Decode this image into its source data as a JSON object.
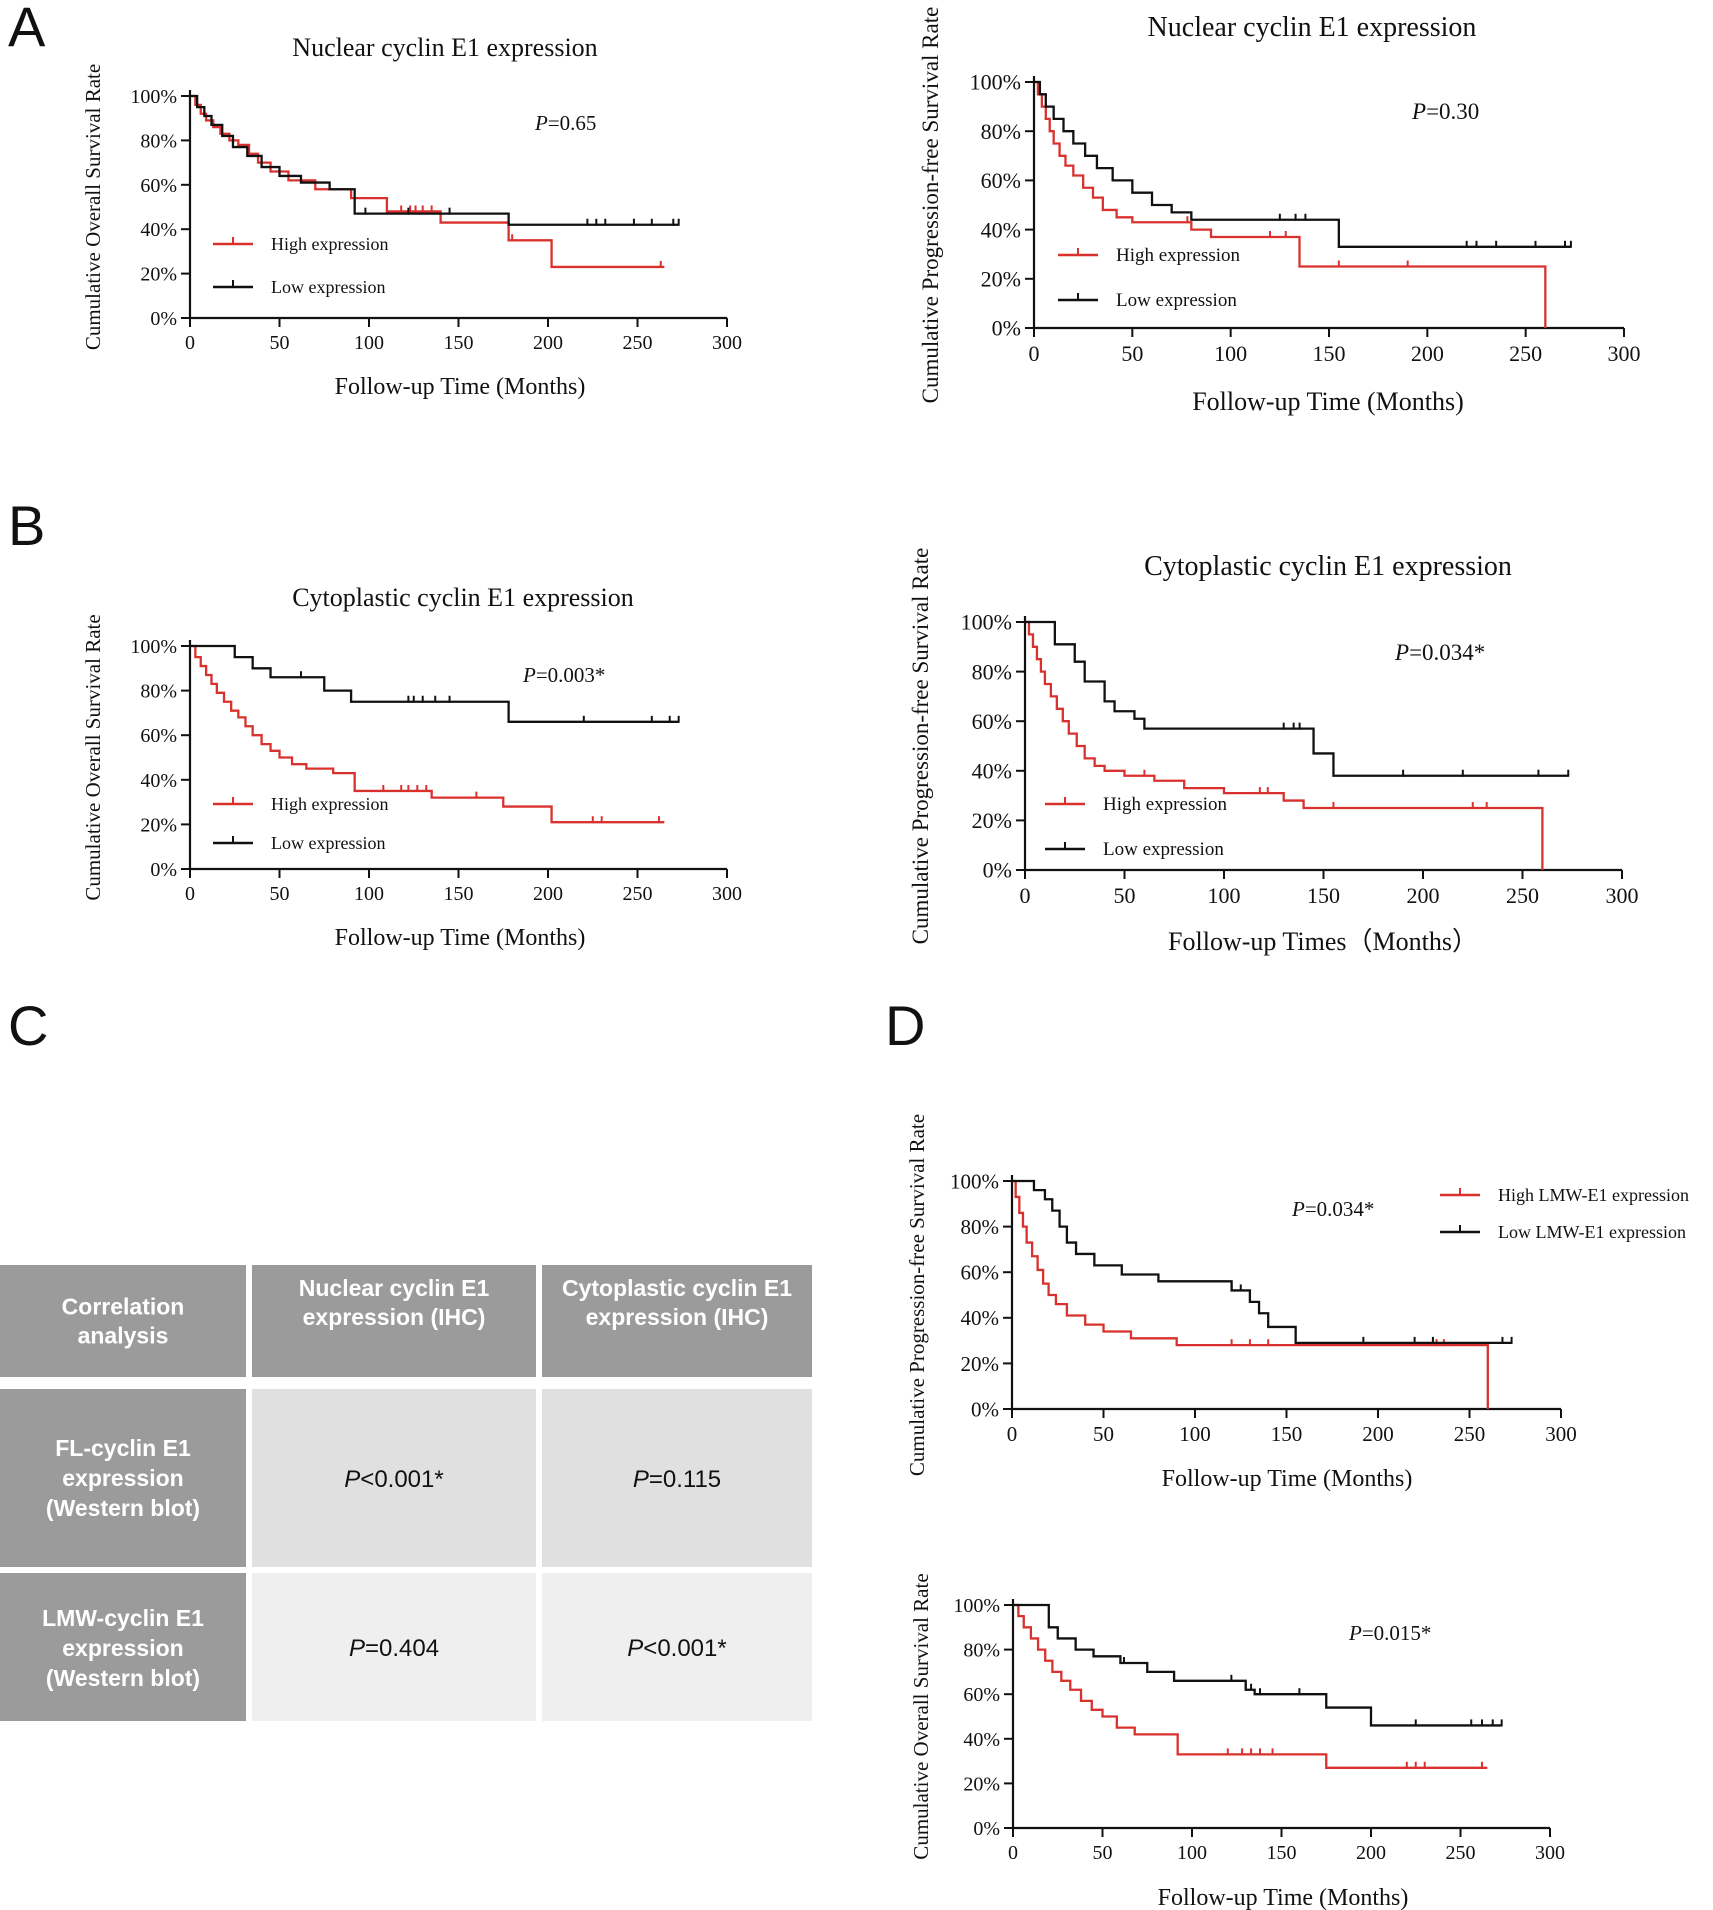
{
  "panel_letters": [
    "A",
    "B",
    "C",
    "D"
  ],
  "colors": {
    "high": "#d9322e",
    "low": "#111111",
    "table_header": "#9b9b9b",
    "table_row1": "#e0e0e0",
    "table_row2": "#efefef"
  },
  "chart_data": [
    {
      "id": "A1",
      "type": "line",
      "title": "Nuclear cyclin E1 expression",
      "xlabel": "Follow-up Time (Months)",
      "ylabel": "Cumulative Overall Survival Rate",
      "xlim": [
        0,
        300
      ],
      "ylim": [
        0,
        100
      ],
      "xticks": [
        "0",
        "50",
        "100",
        "150",
        "200",
        "250",
        "300"
      ],
      "yticks": [
        "0%",
        "20%",
        "40%",
        "60%",
        "80%",
        "100%"
      ],
      "pvalue": {
        "p": "P",
        "rest": "=0.65"
      },
      "legend": [
        "High expression",
        "Low expression"
      ],
      "series": [
        {
          "name": "High expression",
          "color": "high",
          "x": [
            0,
            3,
            6,
            9,
            13,
            17,
            22,
            27,
            33,
            38,
            45,
            55,
            70,
            90,
            110,
            140,
            178,
            202,
            265
          ],
          "y": [
            100,
            96,
            92,
            89,
            86,
            83,
            80,
            78,
            74,
            70,
            66,
            62,
            58,
            54,
            48,
            43,
            35,
            23,
            23
          ],
          "censor_x": [
            118,
            123,
            126,
            130,
            135,
            180,
            263
          ]
        },
        {
          "name": "Low expression",
          "color": "low",
          "x": [
            0,
            4,
            8,
            12,
            18,
            24,
            32,
            40,
            50,
            62,
            78,
            92,
            135,
            178,
            273
          ],
          "y": [
            100,
            95,
            91,
            87,
            82,
            77,
            73,
            68,
            64,
            61,
            58,
            47,
            47,
            42,
            42
          ],
          "censor_x": [
            98,
            122,
            145,
            222,
            227,
            232,
            248,
            258,
            270,
            273
          ]
        }
      ]
    },
    {
      "id": "A2",
      "type": "line",
      "title": "Nuclear cyclin E1 expression",
      "xlabel": "Follow-up Time (Months)",
      "ylabel": "Cumulative Progression-free Survival Rate",
      "xlim": [
        0,
        300
      ],
      "ylim": [
        0,
        100
      ],
      "xticks": [
        "0",
        "50",
        "100",
        "150",
        "200",
        "250",
        "300"
      ],
      "yticks": [
        "0%",
        "20%",
        "40%",
        "60%",
        "80%",
        "100%"
      ],
      "pvalue": {
        "p": "P",
        "rest": "=0.30"
      },
      "legend": [
        "High expression",
        "Low expression"
      ],
      "series": [
        {
          "name": "High expression",
          "color": "high",
          "x": [
            0,
            2,
            4,
            6,
            8,
            10,
            13,
            16,
            20,
            25,
            30,
            35,
            42,
            50,
            80,
            90,
            135,
            260,
            260
          ],
          "y": [
            100,
            95,
            90,
            85,
            80,
            75,
            70,
            66,
            62,
            57,
            53,
            48,
            45,
            43,
            40,
            37,
            25,
            25,
            0
          ],
          "censor_x": [
            78,
            120,
            128,
            155,
            190
          ]
        },
        {
          "name": "Low expression",
          "color": "low",
          "x": [
            0,
            3,
            6,
            10,
            15,
            20,
            26,
            32,
            40,
            50,
            60,
            70,
            80,
            140,
            155,
            273
          ],
          "y": [
            100,
            95,
            90,
            85,
            80,
            75,
            70,
            65,
            60,
            55,
            50,
            47,
            44,
            44,
            33,
            33
          ],
          "censor_x": [
            125,
            133,
            138,
            220,
            225,
            235,
            255,
            270,
            273
          ]
        }
      ]
    },
    {
      "id": "B1",
      "type": "line",
      "title": "Cytoplastic cyclin E1 expression",
      "xlabel": "Follow-up Time (Months)",
      "ylabel": "Cumulative Overall Survival Rate",
      "xlim": [
        0,
        300
      ],
      "ylim": [
        0,
        100
      ],
      "xticks": [
        "0",
        "50",
        "100",
        "150",
        "200",
        "250",
        "300"
      ],
      "yticks": [
        "0%",
        "20%",
        "40%",
        "60%",
        "80%",
        "100%"
      ],
      "pvalue": {
        "p": "P",
        "rest": "=0.003*"
      },
      "legend": [
        "High expression",
        "Low expression"
      ],
      "series": [
        {
          "name": "High expression",
          "color": "high",
          "x": [
            0,
            3,
            6,
            9,
            12,
            15,
            19,
            23,
            27,
            31,
            35,
            40,
            45,
            50,
            57,
            65,
            80,
            92,
            135,
            175,
            202,
            265
          ],
          "y": [
            100,
            95,
            91,
            87,
            83,
            79,
            75,
            71,
            68,
            64,
            60,
            56,
            53,
            50,
            47,
            45,
            43,
            35,
            32,
            28,
            21,
            21
          ],
          "censor_x": [
            108,
            118,
            122,
            127,
            132,
            160,
            225,
            230,
            262
          ]
        },
        {
          "name": "Low expression",
          "color": "low",
          "x": [
            0,
            25,
            35,
            45,
            50,
            75,
            90,
            178,
            273
          ],
          "y": [
            100,
            95,
            90,
            86,
            86,
            80,
            75,
            66,
            66
          ],
          "censor_x": [
            62,
            122,
            125,
            130,
            137,
            145,
            220,
            258,
            268,
            273
          ]
        }
      ]
    },
    {
      "id": "B2",
      "type": "line",
      "title": "Cytoplastic cyclin E1 expression",
      "xlabel": "Follow-up Times（Months）",
      "ylabel": "Cumulative Progression-free Survival Rate",
      "xlim": [
        0,
        300
      ],
      "ylim": [
        0,
        100
      ],
      "xticks": [
        "0",
        "50",
        "100",
        "150",
        "200",
        "250",
        "300"
      ],
      "yticks": [
        "0%",
        "20%",
        "40%",
        "60%",
        "80%",
        "100%"
      ],
      "pvalue": {
        "p": "P",
        "rest": "=0.034*"
      },
      "legend": [
        "High expression",
        "Low expression"
      ],
      "series": [
        {
          "name": "High expression",
          "color": "high",
          "x": [
            0,
            2,
            4,
            6,
            8,
            10,
            13,
            16,
            19,
            22,
            26,
            30,
            35,
            40,
            50,
            65,
            80,
            100,
            130,
            140,
            260,
            260
          ],
          "y": [
            100,
            95,
            90,
            85,
            80,
            75,
            70,
            65,
            60,
            55,
            50,
            45,
            42,
            40,
            38,
            36,
            33,
            31,
            28,
            25,
            25,
            0
          ],
          "censor_x": [
            60,
            100,
            118,
            122,
            155,
            225,
            232
          ]
        },
        {
          "name": "Low expression",
          "color": "low",
          "x": [
            0,
            15,
            25,
            30,
            40,
            45,
            55,
            60,
            140,
            145,
            155,
            273
          ],
          "y": [
            100,
            91,
            84,
            76,
            68,
            64,
            61,
            57,
            57,
            47,
            38,
            38
          ],
          "censor_x": [
            130,
            135,
            138,
            190,
            220,
            258,
            273
          ]
        }
      ]
    },
    {
      "id": "D1",
      "type": "line",
      "title": "",
      "xlabel": "Follow-up Time (Months)",
      "ylabel": "Cumulative Progression-free Survival Rate",
      "xlim": [
        0,
        300
      ],
      "ylim": [
        0,
        100
      ],
      "xticks": [
        "0",
        "50",
        "100",
        "150",
        "200",
        "250",
        "300"
      ],
      "yticks": [
        "0%",
        "20%",
        "40%",
        "60%",
        "80%",
        "100%"
      ],
      "pvalue": {
        "p": "P",
        "rest": "=0.034*"
      },
      "legend": [
        "High LMW-E1 expression",
        "Low LMW-E1 expression"
      ],
      "series": [
        {
          "name": "High LMW-E1 expression",
          "color": "high",
          "x": [
            0,
            2,
            4,
            6,
            8,
            11,
            14,
            17,
            20,
            24,
            30,
            40,
            50,
            65,
            90,
            260,
            260
          ],
          "y": [
            100,
            93,
            86,
            80,
            73,
            67,
            61,
            55,
            50,
            46,
            41,
            37,
            34,
            31,
            28,
            28,
            0
          ],
          "censor_x": [
            120,
            130,
            140,
            232,
            236
          ]
        },
        {
          "name": "Low LMW-E1 expression",
          "color": "low",
          "x": [
            0,
            12,
            18,
            22,
            26,
            30,
            35,
            45,
            60,
            80,
            120,
            130,
            135,
            140,
            155,
            273
          ],
          "y": [
            100,
            96,
            92,
            87,
            80,
            73,
            68,
            63,
            59,
            56,
            52,
            47,
            42,
            36,
            29,
            29
          ],
          "censor_x": [
            120,
            125,
            192,
            220,
            230,
            268,
            273
          ]
        }
      ]
    },
    {
      "id": "D2",
      "type": "line",
      "title": "",
      "xlabel": "Follow-up Time (Months)",
      "ylabel": "Cumulative Overall Survival Rate",
      "xlim": [
        0,
        300
      ],
      "ylim": [
        0,
        100
      ],
      "xticks": [
        "0",
        "50",
        "100",
        "150",
        "200",
        "250",
        "300"
      ],
      "yticks": [
        "0%",
        "20%",
        "40%",
        "60%",
        "80%",
        "100%"
      ],
      "pvalue": {
        "p": "P",
        "rest": "=0.015*"
      },
      "legend": [],
      "series": [
        {
          "name": "High LMW-E1 expression",
          "color": "high",
          "x": [
            0,
            3,
            6,
            10,
            14,
            18,
            22,
            27,
            32,
            38,
            44,
            50,
            58,
            68,
            92,
            175,
            265
          ],
          "y": [
            100,
            95,
            90,
            85,
            80,
            75,
            70,
            66,
            62,
            57,
            53,
            50,
            45,
            42,
            33,
            27,
            27
          ],
          "censor_x": [
            120,
            128,
            133,
            138,
            145,
            220,
            225,
            230,
            262
          ]
        },
        {
          "name": "Low LMW-E1 expression",
          "color": "low",
          "x": [
            0,
            20,
            25,
            35,
            45,
            60,
            75,
            90,
            130,
            135,
            175,
            200,
            273
          ],
          "y": [
            100,
            90,
            85,
            80,
            77,
            74,
            70,
            66,
            62,
            60,
            54,
            46,
            46
          ],
          "censor_x": [
            62,
            122,
            130,
            133,
            138,
            160,
            225,
            256,
            262,
            268,
            273
          ]
        }
      ]
    }
  ],
  "table": {
    "header": [
      "Correlation analysis",
      "Nuclear cyclin E1 expression (IHC)",
      "Cytoplastic cyclin E1 expression (IHC)"
    ],
    "rows": [
      {
        "label": "FL-cyclin E1 expression (Western blot)",
        "cells": [
          {
            "p": "P",
            "rest": "<0.001*"
          },
          {
            "p": "P",
            "rest": "=0.115"
          }
        ]
      },
      {
        "label": "LMW-cyclin E1 expression (Western blot)",
        "cells": [
          {
            "p": "P",
            "rest": "=0.404"
          },
          {
            "p": "P",
            "rest": "<0.001*"
          }
        ]
      }
    ]
  }
}
